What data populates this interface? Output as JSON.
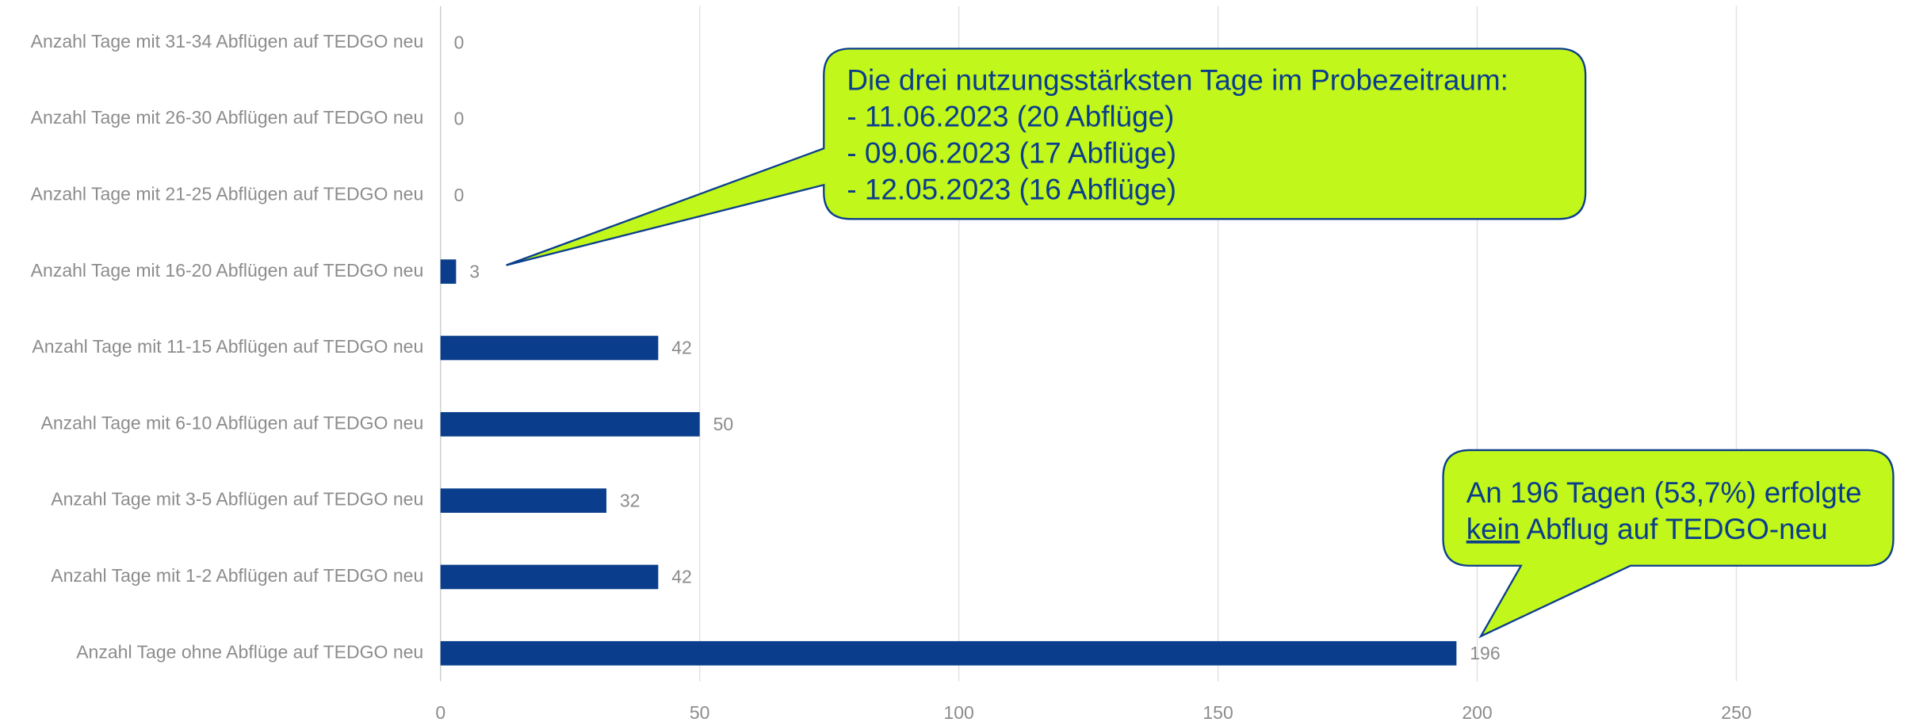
{
  "chart_data": {
    "type": "hbar",
    "categories": [
      "Anzahl Tage mit 31-34 Abflügen auf TEDGO neu",
      "Anzahl Tage mit 26-30 Abflügen auf TEDGO neu",
      "Anzahl Tage mit 21-25 Abflügen auf TEDGO neu",
      "Anzahl Tage mit 16-20 Abflügen auf TEDGO neu",
      "Anzahl Tage mit 11-15 Abflügen auf TEDGO neu",
      "Anzahl Tage mit 6-10 Abflügen auf TEDGO neu",
      "Anzahl Tage mit 3-5 Abflügen auf TEDGO neu",
      "Anzahl Tage mit 1-2 Abflügen auf TEDGO neu",
      "Anzahl Tage ohne Abflüge auf TEDGO neu"
    ],
    "values": [
      0,
      0,
      0,
      3,
      42,
      50,
      32,
      42,
      196
    ],
    "color": "#0a3e8c",
    "xlim": [
      0,
      280
    ],
    "xticks": [
      0,
      50,
      100,
      150,
      200,
      250
    ],
    "grid": true,
    "annotations": [
      {
        "lines": [
          [
            "Die drei nutzungsstärksten Tage im Probezeitraum:"
          ],
          [
            "- 11.06.2023 (20 Abflüge)"
          ],
          [
            "- 09.06.2023 (17 Abflüge)"
          ],
          [
            "- 12.05.2023 (16 Abflüge)"
          ]
        ]
      },
      {
        "lines": [
          [
            "An 196 Tagen (53,7%) erfolgte"
          ],
          [
            "kein",
            " Abflug auf TEDGO-neu"
          ]
        ]
      }
    ]
  }
}
